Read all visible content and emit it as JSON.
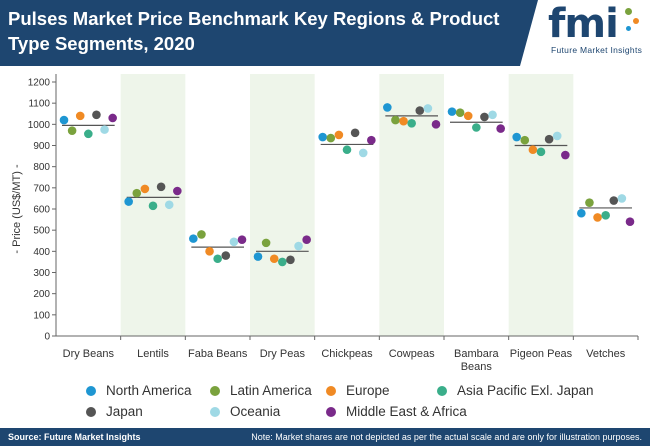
{
  "header": {
    "title": "Pulses Market Price Benchmark Key Regions & Product Type Segments, 2020"
  },
  "logo": {
    "name": "fmi",
    "subtitle": "Future Market Insights"
  },
  "footer": {
    "source": "Source: Future Market Insights",
    "note": "Note: Market shares are not depicted as per the actual scale and are only for illustration purposes."
  },
  "colors": {
    "header_bg": "#1e4670",
    "band": "#eef5ea",
    "North America": "#1e96d2",
    "Latin America": "#7aa23d",
    "Europe": "#f08a24",
    "Asia Pacific Exl. Japan": "#3aae8a",
    "Japan": "#555555",
    "Oceania": "#9fd9e5",
    "Middle East & Africa": "#7a2a8a"
  },
  "chart_data": {
    "type": "scatter",
    "title": "",
    "xlabel": "",
    "ylabel": "- Price (US$/MT) -",
    "ylim": [
      0,
      1200
    ],
    "yticks": [
      0,
      100,
      200,
      300,
      400,
      500,
      600,
      700,
      800,
      900,
      1000,
      1100,
      1200
    ],
    "categories": [
      "Dry Beans",
      "Lentils",
      "Faba Beans",
      "Dry Peas",
      "Chickpeas",
      "Cowpeas",
      "Bambara Beans",
      "Pigeon Peas",
      "Vetches"
    ],
    "category_labels": [
      [
        "Dry Beans"
      ],
      [
        "Lentils"
      ],
      [
        "Faba Beans"
      ],
      [
        "Dry Peas"
      ],
      [
        "Chickpeas"
      ],
      [
        "Cowpeas"
      ],
      [
        "Bambara",
        "Beans"
      ],
      [
        "Pigeon Peas"
      ],
      [
        "Vetches"
      ]
    ],
    "benchmark": [
      995,
      655,
      420,
      400,
      905,
      1040,
      1010,
      900,
      605
    ],
    "series": [
      {
        "name": "North America",
        "values": [
          1020,
          635,
          460,
          375,
          940,
          1080,
          1060,
          940,
          580
        ]
      },
      {
        "name": "Latin America",
        "values": [
          970,
          675,
          480,
          440,
          935,
          1020,
          1055,
          925,
          630
        ]
      },
      {
        "name": "Europe",
        "values": [
          1040,
          695,
          400,
          365,
          950,
          1015,
          1040,
          880,
          560
        ]
      },
      {
        "name": "Asia Pacific Exl. Japan",
        "values": [
          955,
          615,
          365,
          350,
          880,
          1005,
          985,
          870,
          570
        ]
      },
      {
        "name": "Japan",
        "values": [
          1045,
          705,
          380,
          360,
          960,
          1065,
          1035,
          930,
          640
        ]
      },
      {
        "name": "Oceania",
        "values": [
          975,
          620,
          445,
          425,
          865,
          1075,
          1045,
          945,
          650
        ]
      },
      {
        "name": "Middle East & Africa",
        "values": [
          1030,
          685,
          455,
          455,
          925,
          1000,
          980,
          855,
          540
        ]
      }
    ],
    "legend_position": "bottom",
    "grid": false
  }
}
